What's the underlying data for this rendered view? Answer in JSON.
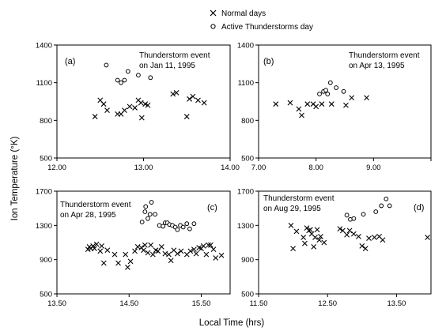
{
  "legend": {
    "normal_label": "Normal days",
    "active_label": "Active Thunderstorms day"
  },
  "ylabel": "Ion Temperature (°K)",
  "xlabel": "Local Time (hrs)",
  "chart_data": [
    {
      "type": "scatter",
      "panel_label": "(a)",
      "annotation_line1": "Thunderstorm event",
      "annotation_line2": "on Jan 11, 1995",
      "xlim": [
        12.0,
        14.0
      ],
      "ylim": [
        500,
        1400
      ],
      "xticks": [
        12.0,
        13.0,
        14.0
      ],
      "xtick_labels": [
        "12.00",
        "13.00",
        "14.00"
      ],
      "yticks": [
        500,
        800,
        1100,
        1400
      ],
      "ytick_labels": [
        "500",
        "800",
        "1100",
        "1400"
      ],
      "series": [
        {
          "name": "Normal days",
          "marker": "cross",
          "points": [
            [
              12.44,
              830
            ],
            [
              12.5,
              960
            ],
            [
              12.54,
              930
            ],
            [
              12.58,
              880
            ],
            [
              12.7,
              850
            ],
            [
              12.74,
              850
            ],
            [
              12.78,
              880
            ],
            [
              12.84,
              910
            ],
            [
              12.9,
              900
            ],
            [
              12.94,
              960
            ],
            [
              12.97,
              940
            ],
            [
              12.98,
              820
            ],
            [
              13.02,
              930
            ],
            [
              13.05,
              920
            ],
            [
              13.34,
              1010
            ],
            [
              13.38,
              1020
            ],
            [
              13.5,
              830
            ],
            [
              13.53,
              970
            ],
            [
              13.57,
              990
            ],
            [
              13.63,
              960
            ],
            [
              13.7,
              940
            ]
          ]
        },
        {
          "name": "Active Thunderstorms day",
          "marker": "circle",
          "points": [
            [
              12.57,
              1240
            ],
            [
              12.7,
              1120
            ],
            [
              12.74,
              1100
            ],
            [
              12.78,
              1120
            ],
            [
              12.82,
              1190
            ],
            [
              12.94,
              1160
            ],
            [
              13.08,
              1140
            ]
          ]
        }
      ]
    },
    {
      "type": "scatter",
      "panel_label": "(b)",
      "annotation_line1": "Thunderstorm event",
      "annotation_line2": "on Apr 13, 1995",
      "xlim": [
        7.0,
        10.0
      ],
      "ylim": [
        500,
        1400
      ],
      "xticks": [
        7.0,
        8.0,
        9.0,
        10.0
      ],
      "xtick_labels": [
        "7.00",
        "8.00",
        "9.00",
        ""
      ],
      "yticks": [
        500,
        800,
        1100,
        1400
      ],
      "ytick_labels": [
        "500",
        "800",
        "1100",
        "1400"
      ],
      "series": [
        {
          "name": "Normal days",
          "marker": "cross",
          "points": [
            [
              7.3,
              930
            ],
            [
              7.55,
              940
            ],
            [
              7.7,
              890
            ],
            [
              7.75,
              840
            ],
            [
              7.85,
              930
            ],
            [
              7.95,
              930
            ],
            [
              8.0,
              910
            ],
            [
              8.1,
              930
            ],
            [
              8.27,
              930
            ],
            [
              8.52,
              920
            ],
            [
              8.62,
              980
            ],
            [
              8.88,
              980
            ]
          ]
        },
        {
          "name": "Active Thunderstorms day",
          "marker": "circle",
          "points": [
            [
              8.06,
              1010
            ],
            [
              8.13,
              1030
            ],
            [
              8.17,
              1040
            ],
            [
              8.2,
              1010
            ],
            [
              8.25,
              1100
            ],
            [
              8.35,
              1060
            ],
            [
              8.48,
              1030
            ]
          ]
        }
      ]
    },
    {
      "type": "scatter",
      "panel_label": "(c)",
      "annotation_line1": "Thunderstorm event",
      "annotation_line2": "on Apr 28, 1995",
      "xlim": [
        13.5,
        15.9
      ],
      "ylim": [
        500,
        1700
      ],
      "xticks": [
        13.5,
        14.5,
        15.5
      ],
      "xtick_labels": [
        "13.50",
        "14.50",
        "15.50"
      ],
      "yticks": [
        500,
        900,
        1300,
        1700
      ],
      "ytick_labels": [
        "500",
        "900",
        "1300",
        "1700"
      ],
      "series": [
        {
          "name": "Normal days",
          "marker": "cross",
          "points": [
            [
              13.93,
              1020
            ],
            [
              13.95,
              1050
            ],
            [
              13.97,
              1030
            ],
            [
              14.0,
              1060
            ],
            [
              14.02,
              1030
            ],
            [
              14.05,
              1080
            ],
            [
              14.1,
              1000
            ],
            [
              14.12,
              1060
            ],
            [
              14.15,
              860
            ],
            [
              14.2,
              1010
            ],
            [
              14.3,
              960
            ],
            [
              14.35,
              860
            ],
            [
              14.45,
              960
            ],
            [
              14.48,
              810
            ],
            [
              14.52,
              880
            ],
            [
              14.58,
              1000
            ],
            [
              14.62,
              1050
            ],
            [
              14.67,
              1040
            ],
            [
              14.7,
              1010
            ],
            [
              14.72,
              1070
            ],
            [
              14.76,
              980
            ],
            [
              14.8,
              1070
            ],
            [
              14.83,
              960
            ],
            [
              14.87,
              1010
            ],
            [
              14.9,
              1000
            ],
            [
              14.95,
              1050
            ],
            [
              15.0,
              970
            ],
            [
              15.05,
              960
            ],
            [
              15.08,
              890
            ],
            [
              15.12,
              1010
            ],
            [
              15.17,
              970
            ],
            [
              15.22,
              1000
            ],
            [
              15.3,
              960
            ],
            [
              15.35,
              1000
            ],
            [
              15.4,
              1020
            ],
            [
              15.43,
              970
            ],
            [
              15.47,
              1040
            ],
            [
              15.5,
              1030
            ],
            [
              15.53,
              1060
            ],
            [
              15.57,
              960
            ],
            [
              15.6,
              1070
            ],
            [
              15.63,
              1070
            ],
            [
              15.67,
              1020
            ],
            [
              15.7,
              920
            ],
            [
              15.78,
              950
            ]
          ]
        },
        {
          "name": "Active Thunderstorms day",
          "marker": "circle",
          "points": [
            [
              14.68,
              1340
            ],
            [
              14.72,
              1460
            ],
            [
              14.73,
              1520
            ],
            [
              14.76,
              1380
            ],
            [
              14.79,
              1430
            ],
            [
              14.81,
              1570
            ],
            [
              14.86,
              1430
            ],
            [
              14.92,
              1300
            ],
            [
              14.97,
              1290
            ],
            [
              15.0,
              1330
            ],
            [
              15.03,
              1330
            ],
            [
              15.06,
              1310
            ],
            [
              15.1,
              1300
            ],
            [
              15.14,
              1280
            ],
            [
              15.17,
              1250
            ],
            [
              15.21,
              1300
            ],
            [
              15.25,
              1280
            ],
            [
              15.3,
              1320
            ],
            [
              15.34,
              1260
            ],
            [
              15.4,
              1320
            ]
          ]
        }
      ]
    },
    {
      "type": "scatter",
      "panel_label": "(d)",
      "annotation_line1": "Thunderstorm event",
      "annotation_line2": "on Aug 29, 1995",
      "xlim": [
        11.5,
        14.0
      ],
      "ylim": [
        500,
        1700
      ],
      "xticks": [
        11.5,
        12.5,
        13.5
      ],
      "xtick_labels": [
        "11.50",
        "12.50",
        "13.50"
      ],
      "yticks": [
        500,
        900,
        1300,
        1700
      ],
      "ytick_labels": [
        "500",
        "900",
        "1300",
        "1700"
      ],
      "series": [
        {
          "name": "Normal days",
          "marker": "cross",
          "points": [
            [
              11.97,
              1300
            ],
            [
              12.0,
              1030
            ],
            [
              12.05,
              1230
            ],
            [
              12.15,
              1160
            ],
            [
              12.17,
              1090
            ],
            [
              12.2,
              1270
            ],
            [
              12.23,
              1240
            ],
            [
              12.25,
              1250
            ],
            [
              12.27,
              1200
            ],
            [
              12.3,
              1050
            ],
            [
              12.32,
              1160
            ],
            [
              12.35,
              1250
            ],
            [
              12.38,
              1130
            ],
            [
              12.4,
              1170
            ],
            [
              12.45,
              1100
            ],
            [
              12.68,
              1260
            ],
            [
              12.72,
              1240
            ],
            [
              12.78,
              1190
            ],
            [
              12.82,
              1240
            ],
            [
              12.88,
              1200
            ],
            [
              12.95,
              1170
            ],
            [
              13.0,
              1060
            ],
            [
              13.05,
              1030
            ],
            [
              13.1,
              1150
            ],
            [
              13.18,
              1160
            ],
            [
              13.25,
              1170
            ],
            [
              13.3,
              1130
            ],
            [
              13.95,
              1160
            ]
          ]
        },
        {
          "name": "Active Thunderstorms day",
          "marker": "circle",
          "points": [
            [
              12.78,
              1420
            ],
            [
              12.83,
              1370
            ],
            [
              12.88,
              1380
            ],
            [
              13.02,
              1430
            ],
            [
              13.2,
              1460
            ],
            [
              13.28,
              1530
            ],
            [
              13.35,
              1610
            ],
            [
              13.4,
              1530
            ]
          ]
        }
      ]
    }
  ]
}
